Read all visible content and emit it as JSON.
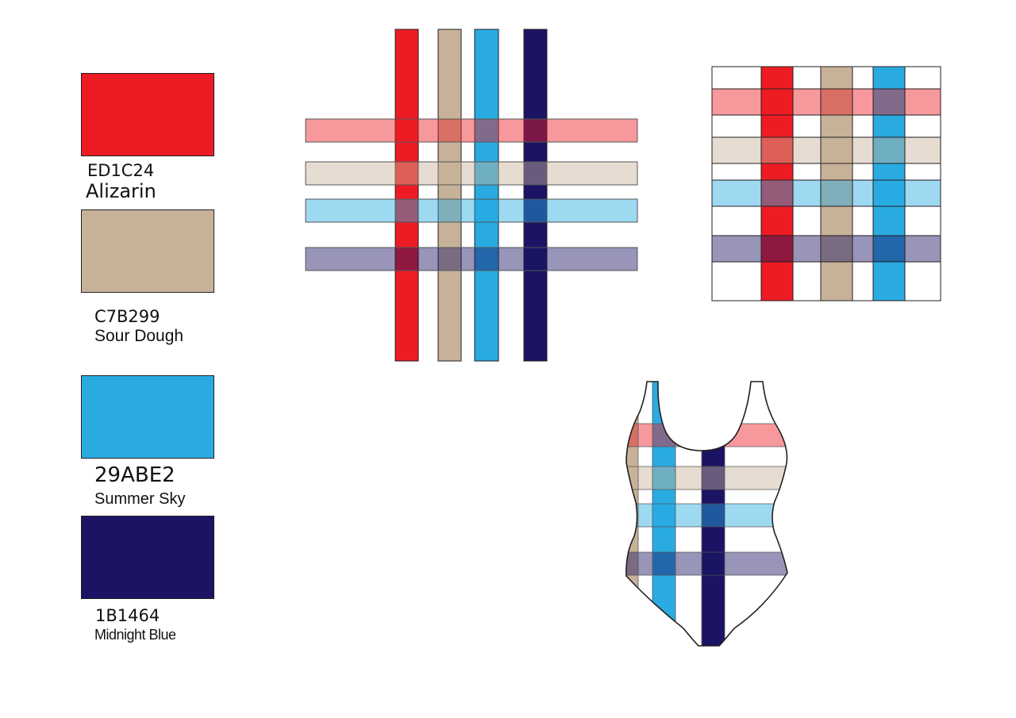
{
  "palette": [
    {
      "code": "ED1C24",
      "name": "Alizarin",
      "hex": "#ED1C24"
    },
    {
      "code": "C7B299",
      "name": "Sour Dough",
      "hex": "#C7B299"
    },
    {
      "code": "29ABE2",
      "name": "Summer Sky",
      "hex": "#29ABE2"
    },
    {
      "code": "1B1464",
      "name": "Midnight Blue",
      "hex": "#1B1464"
    }
  ],
  "tint_colors": [
    "#F7959A",
    "#E4DBD1",
    "#97D4F0",
    "#948FB3"
  ],
  "icons": [
    "plaid-stripes-diagram",
    "plaid-grid-tile",
    "swimsuit-illustration"
  ]
}
